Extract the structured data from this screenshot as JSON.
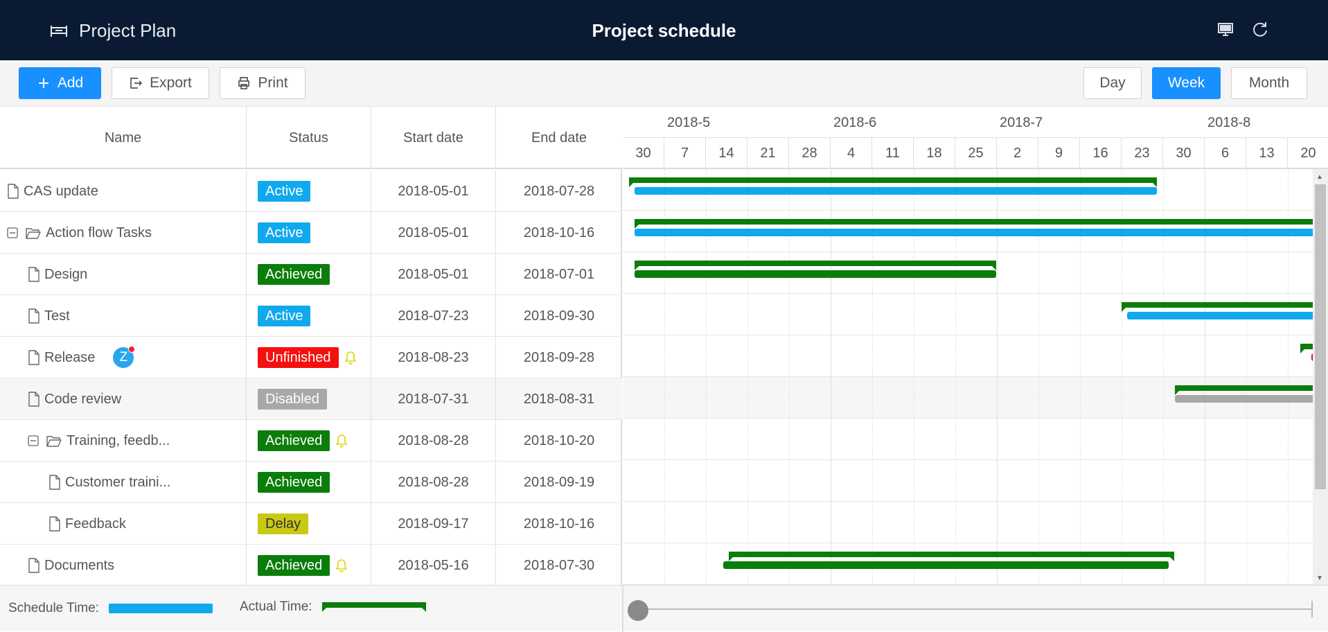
{
  "header": {
    "app_name": "Project Plan",
    "title": "Project schedule"
  },
  "toolbar": {
    "add_label": "Add",
    "export_label": "Export",
    "print_label": "Print",
    "views": [
      "Day",
      "Week",
      "Month"
    ],
    "active_view": "Week"
  },
  "grid": {
    "columns": [
      "Name",
      "Status",
      "Start date",
      "End date"
    ],
    "rows": [
      {
        "name": "CAS update",
        "status": "Active",
        "start": "2018-05-01",
        "end": "2018-07-28"
      },
      {
        "name": "Action flow Tasks",
        "status": "Active",
        "start": "2018-05-01",
        "end": "2018-10-16"
      },
      {
        "name": "Design",
        "status": "Achieved",
        "start": "2018-05-01",
        "end": "2018-07-01"
      },
      {
        "name": "Test",
        "status": "Active",
        "start": "2018-07-23",
        "end": "2018-09-30"
      },
      {
        "name": "Release",
        "status": "Unfinished",
        "start": "2018-08-23",
        "end": "2018-09-28",
        "avatar": "Z"
      },
      {
        "name": "Code review",
        "status": "Disabled",
        "start": "2018-07-31",
        "end": "2018-08-31"
      },
      {
        "name": "Training, feedb...",
        "status": "Achieved",
        "start": "2018-08-28",
        "end": "2018-10-20"
      },
      {
        "name": "Customer traini...",
        "status": "Achieved",
        "start": "2018-08-28",
        "end": "2018-09-19"
      },
      {
        "name": "Feedback",
        "status": "Delay",
        "start": "2018-09-17",
        "end": "2018-10-16"
      },
      {
        "name": "Documents",
        "status": "Achieved",
        "start": "2018-05-16",
        "end": "2018-07-30"
      }
    ]
  },
  "timeline": {
    "months": [
      "2018-5",
      "2018-6",
      "2018-7",
      "2018-8"
    ],
    "weeks": [
      "30",
      "7",
      "14",
      "21",
      "28",
      "4",
      "11",
      "18",
      "25",
      "2",
      "9",
      "16",
      "23",
      "30",
      "6",
      "13",
      "20"
    ]
  },
  "status_colors": {
    "Active": "#10a9ee",
    "Achieved": "#0a7d0a",
    "Unfinished": "#f50f0f",
    "Disabled": "#a8a8a8",
    "Delay": "#c9c914"
  },
  "legend": {
    "schedule_label": "Schedule Time:",
    "actual_label": "Actual Time:"
  },
  "colors": {
    "header_bg": "#0a1a33",
    "primary": "#1890ff",
    "schedule": "#10a9ee",
    "actual": "#0a7d0a",
    "bell": "#e0d400"
  },
  "icons": [
    "gantt-icon",
    "monitor-icon",
    "refresh-icon",
    "plus-icon",
    "export-icon",
    "printer-icon",
    "file-icon",
    "folder-open-icon",
    "collapse-icon",
    "bell-icon"
  ]
}
